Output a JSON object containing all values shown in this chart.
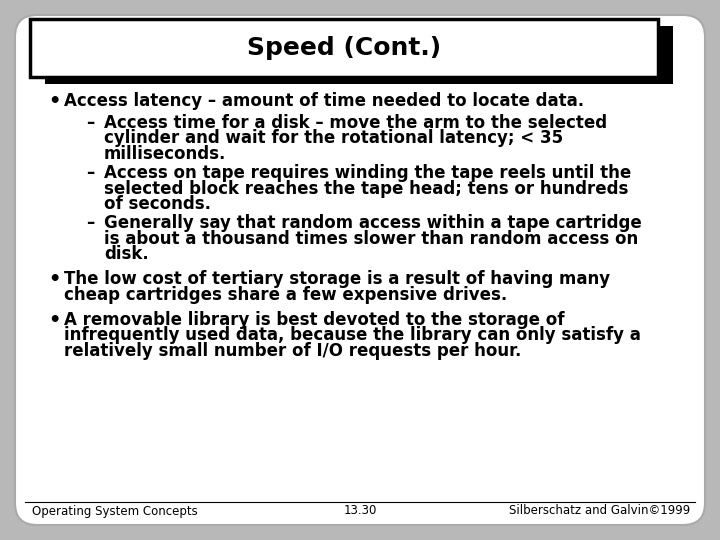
{
  "title": "Speed (Cont.)",
  "slide_bg": "#b8b8b8",
  "title_fontsize": 18,
  "body_fontsize": 12,
  "footer_fontsize": 8.5,
  "bullet1": "Access latency – amount of time needed to locate data.",
  "sub1a_line1": "Access time for a disk – move the arm to the selected",
  "sub1a_line2": "cylinder and wait for the rotational latency; < 35",
  "sub1a_line3": "milliseconds.",
  "sub1b_line1": "Access on tape requires winding the tape reels until the",
  "sub1b_line2": "selected block reaches the tape head; tens or hundreds",
  "sub1b_line3": "of seconds.",
  "sub1c_line1": "Generally say that random access within a tape cartridge",
  "sub1c_line2": "is about a thousand times slower than random access on",
  "sub1c_line3": "disk.",
  "bullet2_line1": "The low cost of tertiary storage is a result of having many",
  "bullet2_line2": "cheap cartridges share a few expensive drives.",
  "bullet3_line1": "A removable library is best devoted to the storage of",
  "bullet3_line2": "infrequently used data, because the library can only satisfy a",
  "bullet3_line3": "relatively small number of I/O requests per hour.",
  "footer_left": "Operating System Concepts",
  "footer_center": "13.30",
  "footer_right": "Silberschatz and Galvin©1999"
}
